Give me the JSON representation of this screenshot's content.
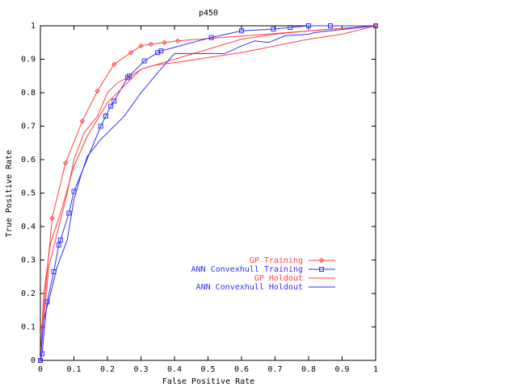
{
  "chart_data": {
    "type": "line",
    "title": "p450",
    "xlabel": "False Positive Rate",
    "ylabel": "True Positive Rate",
    "xlim": [
      0,
      1
    ],
    "ylim": [
      0,
      1
    ],
    "xticks": [
      "0",
      "0.1",
      "0.2",
      "0.3",
      "0.4",
      "0.5",
      "0.6",
      "0.7",
      "0.8",
      "0.9",
      "1"
    ],
    "yticks": [
      "0",
      "0.1",
      "0.2",
      "0.3",
      "0.4",
      "0.5",
      "0.6",
      "0.7",
      "0.8",
      "0.9",
      "1"
    ],
    "grid": false,
    "legend_position": "bottom-right",
    "series": [
      {
        "name": "GP Training",
        "color": "#ff4040",
        "marker": "diamond",
        "x": [
          0,
          0.005,
          0.035,
          0.075,
          0.125,
          0.17,
          0.22,
          0.27,
          0.3,
          0.33,
          0.37,
          0.41,
          1.0
        ],
        "y": [
          0,
          0.1,
          0.425,
          0.59,
          0.715,
          0.805,
          0.885,
          0.92,
          0.94,
          0.945,
          0.95,
          0.955,
          1.0
        ]
      },
      {
        "name": "ANN Convexhull Training",
        "color": "#3030ff",
        "marker": "square",
        "x": [
          0,
          0.005,
          0.02,
          0.04,
          0.055,
          0.06,
          0.085,
          0.1,
          0.18,
          0.195,
          0.21,
          0.22,
          0.26,
          0.265,
          0.31,
          0.35,
          0.36,
          0.51,
          0.6,
          0.695,
          0.745,
          0.8,
          0.865,
          1.0
        ],
        "y": [
          0,
          0.02,
          0.175,
          0.265,
          0.345,
          0.36,
          0.44,
          0.505,
          0.7,
          0.73,
          0.76,
          0.775,
          0.845,
          0.85,
          0.895,
          0.92,
          0.925,
          0.965,
          0.985,
          0.99,
          0.995,
          1.0,
          1.0,
          1.0
        ]
      },
      {
        "name": "GP Holdout",
        "color": "#ff4040",
        "marker": "",
        "x": [
          0,
          0.01,
          0.025,
          0.05,
          0.08,
          0.1,
          0.13,
          0.17,
          0.2,
          0.23,
          0.27,
          0.3,
          0.33,
          0.36,
          0.4,
          0.6,
          0.7,
          0.8,
          0.9,
          1.0
        ],
        "y": [
          0,
          0.12,
          0.28,
          0.38,
          0.5,
          0.6,
          0.68,
          0.73,
          0.8,
          0.83,
          0.85,
          0.87,
          0.88,
          0.885,
          0.89,
          0.92,
          0.94,
          0.96,
          0.975,
          1.0
        ],
        "x2": [
          0,
          0.01,
          0.03,
          0.06,
          0.1,
          0.14,
          0.2,
          0.3,
          0.4,
          0.5,
          0.6,
          0.7,
          0.8,
          1.0
        ],
        "y2": [
          0,
          0.2,
          0.35,
          0.44,
          0.58,
          0.67,
          0.77,
          0.87,
          0.9,
          0.93,
          0.96,
          0.975,
          0.985,
          1.0
        ]
      },
      {
        "name": "ANN Convexhull Holdout",
        "color": "#3030ff",
        "marker": "",
        "x": [
          0,
          0.01,
          0.03,
          0.05,
          0.08,
          0.1,
          0.12,
          0.14,
          0.18,
          0.25,
          0.3,
          0.35,
          0.4,
          0.45,
          0.55,
          0.6,
          0.64,
          0.68,
          0.73,
          0.8,
          0.82,
          1.0
        ],
        "y": [
          0,
          0.12,
          0.2,
          0.28,
          0.36,
          0.48,
          0.55,
          0.61,
          0.66,
          0.73,
          0.8,
          0.86,
          0.917,
          0.917,
          0.917,
          0.94,
          0.955,
          0.95,
          0.97,
          0.975,
          0.98,
          1.0
        ]
      }
    ]
  }
}
